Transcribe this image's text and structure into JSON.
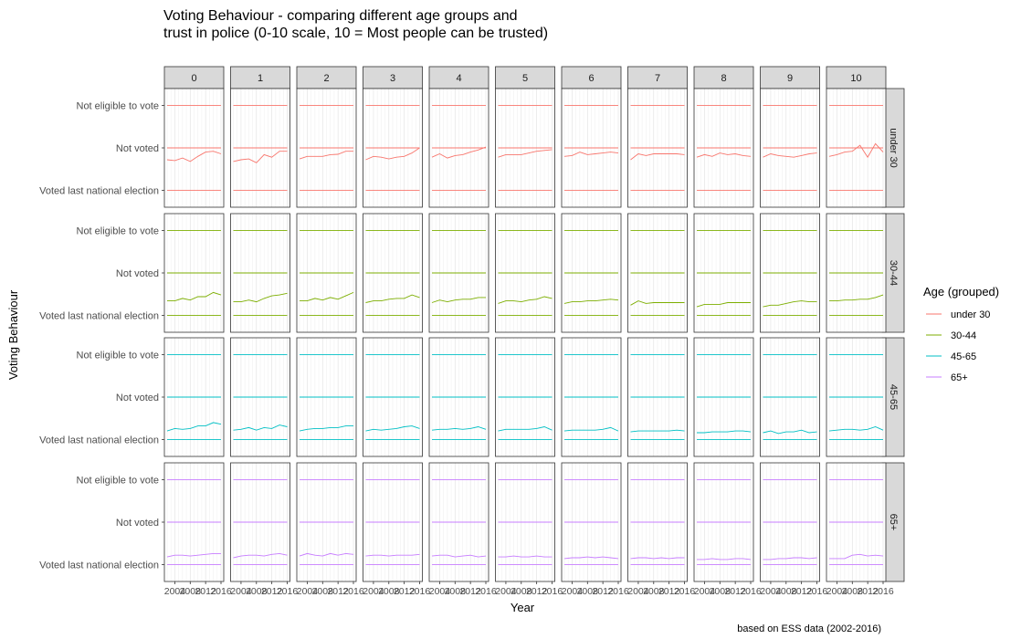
{
  "chart_data": {
    "type": "line",
    "title": "Voting Behaviour - comparing different age groups and\ntrust in police (0-10 scale, 10 = Most people can be trusted)",
    "xlabel": "Year",
    "ylabel": "Voting Behaviour",
    "caption": "based on ESS data (2002-2016)",
    "legend_title": "Age (grouped)",
    "legend_position": "right",
    "grid": true,
    "x_ticks": [
      "2004",
      "2008",
      "2012",
      "2016"
    ],
    "xlim": [
      2002,
      2016
    ],
    "y_levels": [
      "Voted last national election",
      "Not voted",
      "Not eligible to vote"
    ],
    "facet_columns": [
      "0",
      "1",
      "2",
      "3",
      "4",
      "5",
      "6",
      "7",
      "8",
      "9",
      "10"
    ],
    "facet_rows": [
      "under 30",
      "30-44",
      "45-65",
      "65+"
    ],
    "years": [
      2002,
      2004,
      2006,
      2008,
      2010,
      2012,
      2014,
      2016
    ],
    "colors": {
      "under 30": "#F8766D",
      "30-44": "#7CAE00",
      "45-65": "#00BFC4",
      "65+": "#C77CFF"
    },
    "series": [
      {
        "name": "under 30",
        "values": [
          [
            1.72,
            1.7,
            1.76,
            1.68,
            1.8,
            1.9,
            1.92,
            1.86
          ],
          [
            1.68,
            1.72,
            1.74,
            1.65,
            1.84,
            1.78,
            1.92,
            1.92
          ],
          [
            1.74,
            1.8,
            1.8,
            1.8,
            1.84,
            1.85,
            1.92,
            1.92
          ],
          [
            1.72,
            1.8,
            1.78,
            1.74,
            1.78,
            1.8,
            1.88,
            2.0
          ],
          [
            1.78,
            1.86,
            1.76,
            1.82,
            1.84,
            1.9,
            1.95,
            2.02
          ],
          [
            1.78,
            1.84,
            1.84,
            1.84,
            1.88,
            1.92,
            1.94,
            1.96
          ],
          [
            1.8,
            1.82,
            1.9,
            1.84,
            1.86,
            1.88,
            1.9,
            1.88
          ],
          [
            1.72,
            1.86,
            1.82,
            1.86,
            1.86,
            1.86,
            1.86,
            1.84
          ],
          [
            1.78,
            1.84,
            1.8,
            1.88,
            1.84,
            1.86,
            1.82,
            1.8
          ],
          [
            1.78,
            1.86,
            1.82,
            1.8,
            1.78,
            1.82,
            1.86,
            1.88
          ],
          [
            1.8,
            1.84,
            1.9,
            1.92,
            2.06,
            1.78,
            2.1,
            1.9
          ]
        ]
      },
      {
        "name": "30-44",
        "values": [
          [
            1.34,
            1.34,
            1.4,
            1.36,
            1.44,
            1.44,
            1.54,
            1.48
          ],
          [
            1.32,
            1.32,
            1.36,
            1.32,
            1.4,
            1.46,
            1.48,
            1.52
          ],
          [
            1.34,
            1.34,
            1.4,
            1.36,
            1.42,
            1.38,
            1.46,
            1.54
          ],
          [
            1.3,
            1.34,
            1.34,
            1.38,
            1.4,
            1.4,
            1.48,
            1.42
          ],
          [
            1.3,
            1.36,
            1.32,
            1.36,
            1.38,
            1.38,
            1.42,
            1.42
          ],
          [
            1.28,
            1.34,
            1.34,
            1.32,
            1.36,
            1.38,
            1.44,
            1.4
          ],
          [
            1.28,
            1.32,
            1.32,
            1.34,
            1.34,
            1.36,
            1.38,
            1.36
          ],
          [
            1.24,
            1.34,
            1.28,
            1.3,
            1.3,
            1.3,
            1.3,
            1.3
          ],
          [
            1.2,
            1.26,
            1.26,
            1.26,
            1.3,
            1.3,
            1.3,
            1.3
          ],
          [
            1.2,
            1.24,
            1.24,
            1.28,
            1.32,
            1.34,
            1.32,
            1.32
          ],
          [
            1.34,
            1.34,
            1.36,
            1.36,
            1.38,
            1.38,
            1.42,
            1.48
          ]
        ]
      },
      {
        "name": "45-65",
        "values": [
          [
            1.2,
            1.26,
            1.24,
            1.26,
            1.32,
            1.32,
            1.4,
            1.36
          ],
          [
            1.22,
            1.24,
            1.28,
            1.22,
            1.28,
            1.26,
            1.34,
            1.3
          ],
          [
            1.2,
            1.24,
            1.26,
            1.26,
            1.28,
            1.28,
            1.32,
            1.32
          ],
          [
            1.2,
            1.24,
            1.22,
            1.24,
            1.26,
            1.3,
            1.32,
            1.26
          ],
          [
            1.22,
            1.24,
            1.24,
            1.26,
            1.24,
            1.26,
            1.3,
            1.24
          ],
          [
            1.2,
            1.24,
            1.24,
            1.24,
            1.24,
            1.26,
            1.3,
            1.22
          ],
          [
            1.2,
            1.22,
            1.22,
            1.22,
            1.22,
            1.24,
            1.28,
            1.2
          ],
          [
            1.18,
            1.2,
            1.2,
            1.2,
            1.2,
            1.2,
            1.22,
            1.2
          ],
          [
            1.16,
            1.16,
            1.18,
            1.18,
            1.18,
            1.2,
            1.2,
            1.18
          ],
          [
            1.16,
            1.2,
            1.14,
            1.18,
            1.18,
            1.22,
            1.16,
            1.18
          ],
          [
            1.2,
            1.22,
            1.24,
            1.24,
            1.22,
            1.24,
            1.3,
            1.22
          ]
        ]
      },
      {
        "name": "65+",
        "values": [
          [
            1.18,
            1.22,
            1.22,
            1.2,
            1.22,
            1.24,
            1.26,
            1.26
          ],
          [
            1.16,
            1.2,
            1.22,
            1.22,
            1.2,
            1.24,
            1.26,
            1.22
          ],
          [
            1.2,
            1.26,
            1.22,
            1.2,
            1.26,
            1.22,
            1.26,
            1.24
          ],
          [
            1.2,
            1.22,
            1.22,
            1.2,
            1.22,
            1.22,
            1.22,
            1.24
          ],
          [
            1.2,
            1.22,
            1.22,
            1.18,
            1.2,
            1.22,
            1.18,
            1.2
          ],
          [
            1.18,
            1.18,
            1.2,
            1.18,
            1.18,
            1.2,
            1.18,
            1.18
          ],
          [
            1.14,
            1.16,
            1.16,
            1.18,
            1.16,
            1.18,
            1.16,
            1.14
          ],
          [
            1.14,
            1.16,
            1.16,
            1.14,
            1.16,
            1.14,
            1.16,
            1.16
          ],
          [
            1.12,
            1.12,
            1.14,
            1.12,
            1.12,
            1.14,
            1.14,
            1.12
          ],
          [
            1.12,
            1.12,
            1.14,
            1.14,
            1.16,
            1.16,
            1.14,
            1.16
          ],
          [
            1.14,
            1.14,
            1.14,
            1.22,
            1.24,
            1.2,
            1.22,
            1.2
          ]
        ]
      }
    ]
  }
}
